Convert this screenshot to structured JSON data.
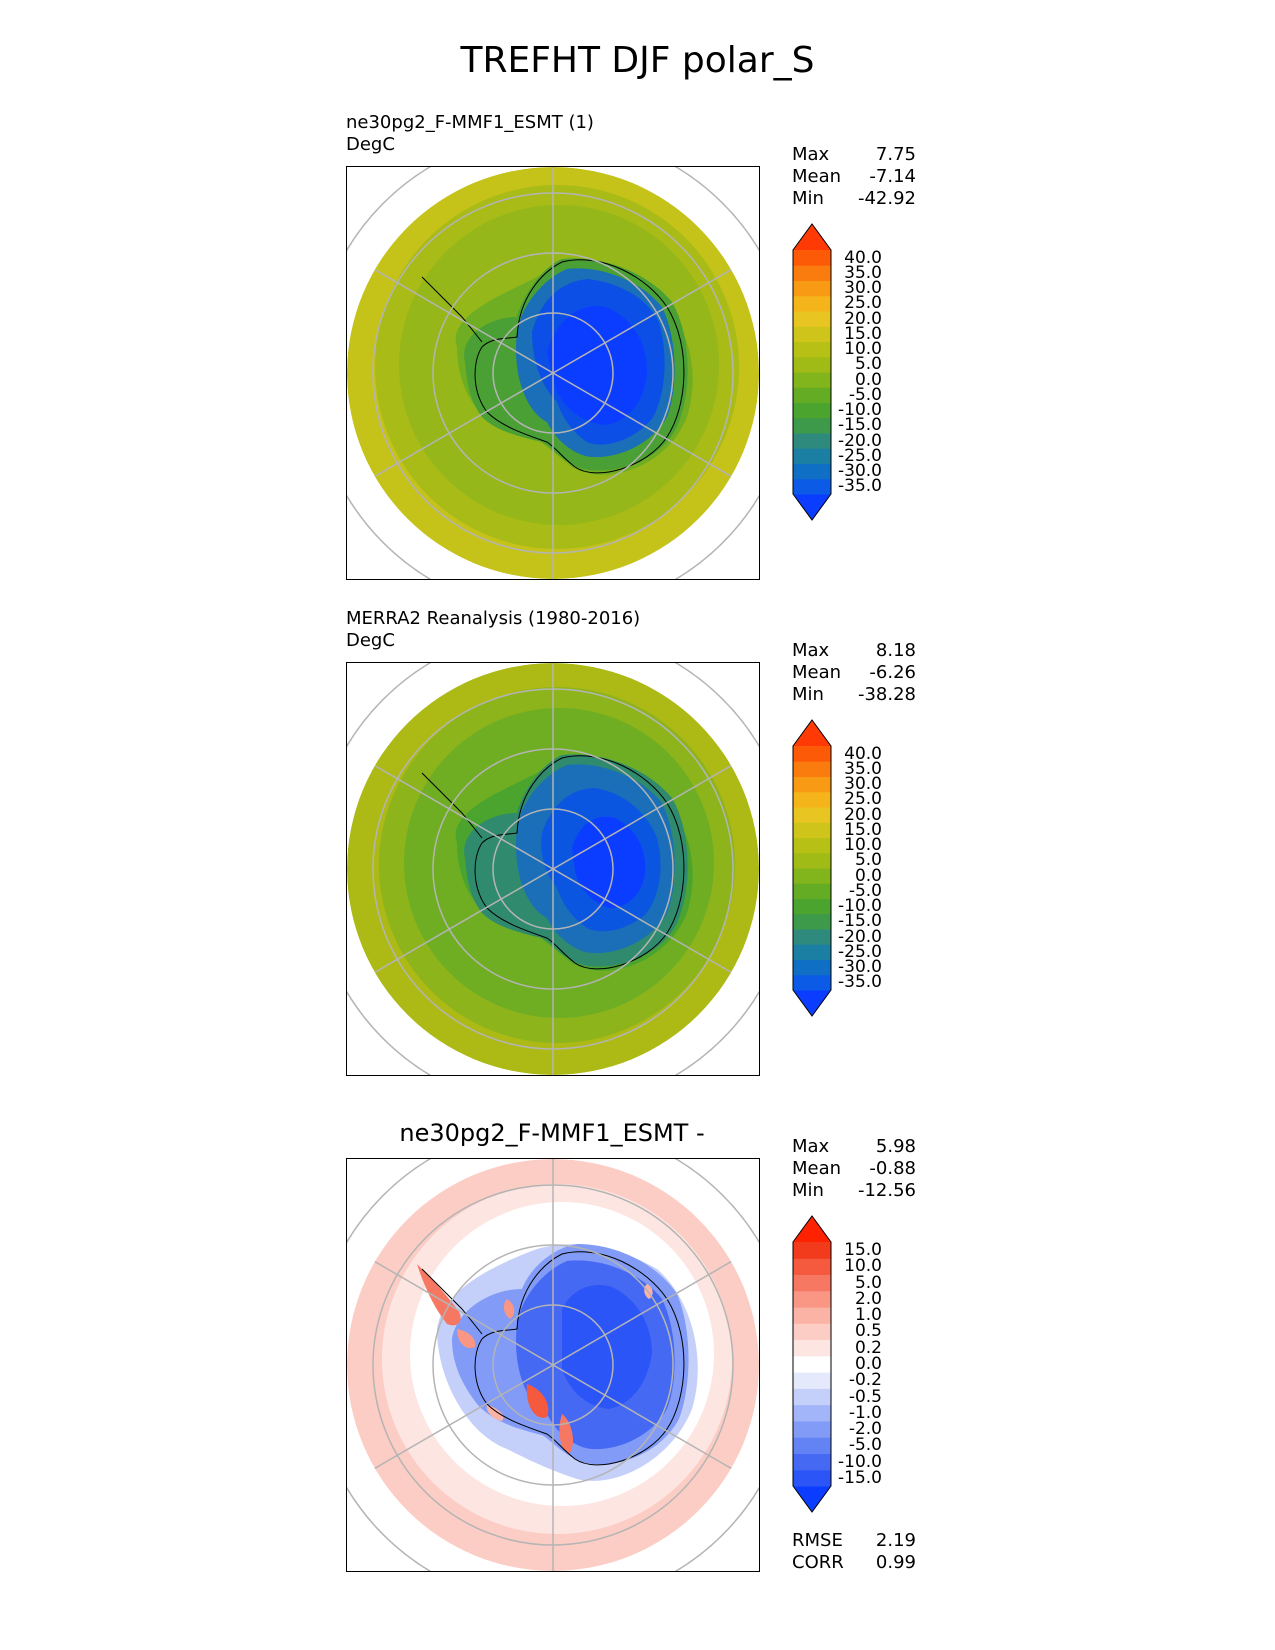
{
  "title": "TREFHT DJF polar_S",
  "panels": [
    {
      "left_title": "ne30pg2_F-MMF1_ESMT (1)",
      "units": "DegC",
      "stats": [
        {
          "label": "Max",
          "value": "7.75"
        },
        {
          "label": "Mean",
          "value": "-7.14"
        },
        {
          "label": "Min",
          "value": "-42.92"
        }
      ],
      "colorbar": {
        "levels": [
          "40.0",
          "35.0",
          "30.0",
          "25.0",
          "20.0",
          "15.0",
          "10.0",
          "5.0",
          "0.0",
          "-5.0",
          "-10.0",
          "-15.0",
          "-20.0",
          "-25.0",
          "-30.0",
          "-35.0"
        ],
        "colors": [
          "#0a3dff",
          "#0b5be6",
          "#0f6fc4",
          "#1a7fa2",
          "#2f8a7e",
          "#3d9a4a",
          "#4aa42e",
          "#63ac24",
          "#82b41c",
          "#a0ba16",
          "#b7c014",
          "#cfc41a",
          "#e8c520",
          "#f4b41a",
          "#f89a14",
          "#fb7c0e",
          "#fd5a08",
          "#ff3a04"
        ]
      }
    },
    {
      "left_title": "MERRA2 Reanalysis (1980-2016)",
      "units": "DegC",
      "stats": [
        {
          "label": "Max",
          "value": "8.18"
        },
        {
          "label": "Mean",
          "value": "-6.26"
        },
        {
          "label": "Min",
          "value": "-38.28"
        }
      ],
      "colorbar": {
        "levels": [
          "40.0",
          "35.0",
          "30.0",
          "25.0",
          "20.0",
          "15.0",
          "10.0",
          "5.0",
          "0.0",
          "-5.0",
          "-10.0",
          "-15.0",
          "-20.0",
          "-25.0",
          "-30.0",
          "-35.0"
        ],
        "colors": [
          "#0a3dff",
          "#0b5be6",
          "#0f6fc4",
          "#1a7fa2",
          "#2f8a7e",
          "#3d9a4a",
          "#4aa42e",
          "#63ac24",
          "#82b41c",
          "#a0ba16",
          "#b7c014",
          "#cfc41a",
          "#e8c520",
          "#f4b41a",
          "#f89a14",
          "#fb7c0e",
          "#fd5a08",
          "#ff3a04"
        ]
      }
    },
    {
      "center_title": "ne30pg2_F-MMF1_ESMT -",
      "stats": [
        {
          "label": "Max",
          "value": "5.98"
        },
        {
          "label": "Mean",
          "value": "-0.88"
        },
        {
          "label": "Min",
          "value": "-12.56"
        }
      ],
      "colorbar": {
        "levels": [
          "15.0",
          "10.0",
          "5.0",
          "2.0",
          "1.0",
          "0.5",
          "0.2",
          "0.0",
          "-0.2",
          "-0.5",
          "-1.0",
          "-2.0",
          "-5.0",
          "-10.0",
          "-15.0"
        ],
        "colors": [
          "#0a3dff",
          "#2b55f7",
          "#4669f4",
          "#6383f5",
          "#819bf6",
          "#a2b5f8",
          "#c4cffa",
          "#e4e9fc",
          "#ffffff",
          "#fde6e2",
          "#fccdc5",
          "#fbb3a6",
          "#f99684",
          "#f77862",
          "#f55a3e",
          "#f23a1c",
          "#ff2200"
        ]
      },
      "bottom_stats": [
        {
          "label": "RMSE",
          "value": "2.19"
        },
        {
          "label": "CORR",
          "value": "0.99"
        }
      ]
    }
  ]
}
